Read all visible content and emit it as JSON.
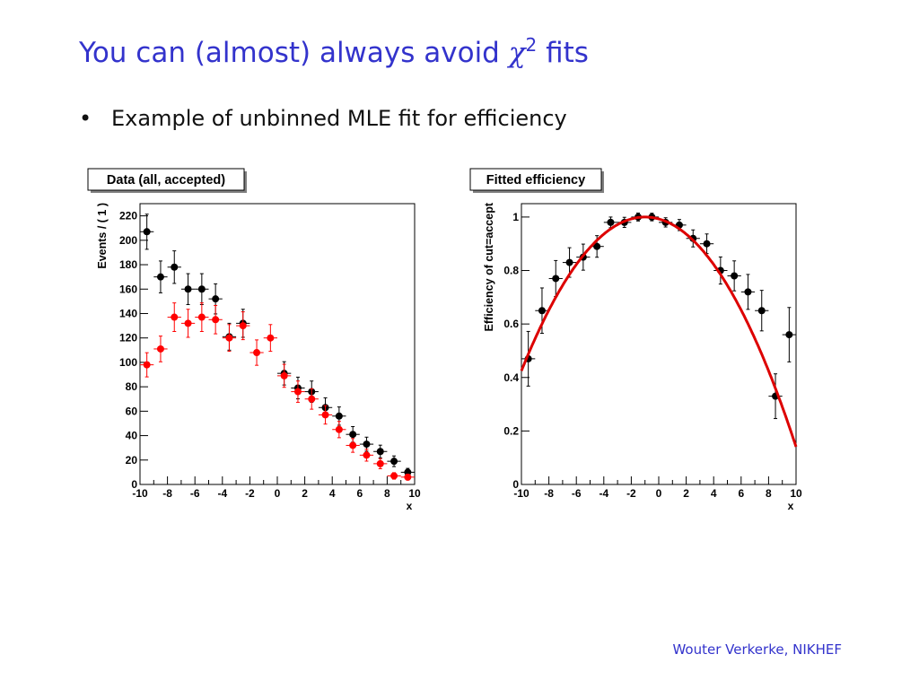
{
  "slide": {
    "title_text": "You can (almost) always avoid ",
    "title_symbol": "χ",
    "title_sup": "2",
    "title_tail": " fits",
    "bullet_symbol": "•",
    "bullet_text": "Example of unbinned MLE fit for efficiency",
    "footer": "Wouter Verkerke, NIKHEF"
  },
  "colors": {
    "title": "#3333cc",
    "accepted": "#ff0000",
    "all": "#000000",
    "fit": "#dd0000"
  },
  "chart_data": [
    {
      "type": "scatter",
      "title": "Data (all, accepted)",
      "xlabel": "x",
      "ylabel": "Events / ( 1 )",
      "xlim": [
        -10,
        10
      ],
      "ylim": [
        0,
        230
      ],
      "xticks": [
        -10,
        -8,
        -6,
        -4,
        -2,
        0,
        2,
        4,
        6,
        8,
        10
      ],
      "yticks": [
        0,
        20,
        40,
        60,
        80,
        100,
        120,
        140,
        160,
        180,
        200,
        220
      ],
      "grid": false,
      "series": [
        {
          "color": "#000000",
          "x": [
            -9.5,
            -8.5,
            -7.5,
            -6.5,
            -5.5,
            -4.5,
            -3.5,
            -2.5,
            0.5,
            1.5,
            2.5,
            3.5,
            4.5,
            5.5,
            6.5,
            7.5,
            8.5,
            9.5
          ],
          "y": [
            207,
            170,
            178,
            160,
            160,
            152,
            121,
            132,
            91,
            79,
            76,
            63,
            56,
            41,
            33,
            27,
            19,
            10
          ]
        },
        {
          "color": "#ff0000",
          "x": [
            -9.5,
            -8.5,
            -7.5,
            -6.5,
            -5.5,
            -4.5,
            -3.5,
            -2.5,
            -1.5,
            -0.5,
            0.5,
            1.5,
            2.5,
            3.5,
            4.5,
            5.5,
            6.5,
            7.5,
            8.5,
            9.5
          ],
          "y": [
            98,
            111,
            137,
            132,
            137,
            135,
            120,
            130,
            108,
            120,
            89,
            76,
            70,
            57,
            45,
            32,
            24,
            17,
            7,
            6
          ]
        }
      ]
    },
    {
      "type": "scatter",
      "title": "Fitted efficiency",
      "xlabel": "x",
      "ylabel": "Efficiency of cut=accept",
      "xlim": [
        -10,
        10
      ],
      "ylim": [
        0,
        1.05
      ],
      "xticks": [
        -10,
        -8,
        -6,
        -4,
        -2,
        0,
        2,
        4,
        6,
        8,
        10
      ],
      "yticks": [
        0,
        0.2,
        0.4,
        0.6,
        0.8,
        1
      ],
      "grid": false,
      "series": [
        {
          "color": "#000000",
          "x": [
            -9.5,
            -8.5,
            -7.5,
            -6.5,
            -5.5,
            -4.5,
            -3.5,
            -2.5,
            -1.5,
            -0.5,
            0.5,
            1.5,
            2.5,
            3.5,
            4.5,
            5.5,
            6.5,
            7.5,
            8.5,
            9.5
          ],
          "y": [
            0.47,
            0.65,
            0.77,
            0.83,
            0.85,
            0.89,
            0.98,
            0.98,
            1.0,
            1.0,
            0.98,
            0.97,
            0.92,
            0.9,
            0.8,
            0.78,
            0.72,
            0.65,
            0.33,
            0.56
          ]
        }
      ],
      "fit": {
        "color": "#dd0000",
        "peak_x": -1.0,
        "peak_y": 1.0,
        "curvature": 0.0071
      }
    }
  ]
}
